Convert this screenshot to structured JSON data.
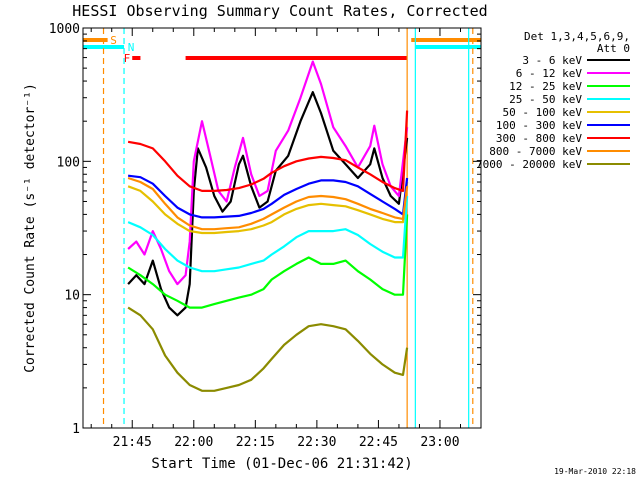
{
  "chart_data": {
    "type": "line",
    "title": "HESSI Observing Summary Count Rates, Corrected",
    "xlabel": "Start Time (01-Dec-06 21:31:42)",
    "ylabel": "Corrected Count Rate (s⁻¹ detector⁻¹)",
    "y_scale": "log",
    "ylim": [
      1,
      1000
    ],
    "xlim": [
      "21:33",
      "23:10"
    ],
    "x_ticks": [
      "21:45",
      "22:00",
      "22:15",
      "22:30",
      "22:45",
      "23:00"
    ],
    "y_ticks": [
      {
        "value": 1,
        "label": "1"
      },
      {
        "value": 10,
        "label": "10"
      },
      {
        "value": 100,
        "label": "100"
      },
      {
        "value": 1000,
        "label": "1000"
      }
    ],
    "legend_title": [
      "Det 1,3,4,5,6,9,",
      "Att 0"
    ],
    "legend_position": "right",
    "series": [
      {
        "name": "3 - 6 keV",
        "color": "#000000",
        "points": [
          [
            "21:44",
            12
          ],
          [
            "21:46",
            14
          ],
          [
            "21:48",
            12
          ],
          [
            "21:50",
            18
          ],
          [
            "21:52",
            11
          ],
          [
            "21:54",
            8
          ],
          [
            "21:56",
            7
          ],
          [
            "21:58",
            8
          ],
          [
            "21:59",
            12
          ],
          [
            "22:00",
            60
          ],
          [
            "22:01",
            125
          ],
          [
            "22:03",
            90
          ],
          [
            "22:05",
            55
          ],
          [
            "22:07",
            42
          ],
          [
            "22:09",
            50
          ],
          [
            "22:11",
            95
          ],
          [
            "22:12",
            110
          ],
          [
            "22:14",
            65
          ],
          [
            "22:16",
            45
          ],
          [
            "22:18",
            50
          ],
          [
            "22:20",
            85
          ],
          [
            "22:23",
            110
          ],
          [
            "22:26",
            200
          ],
          [
            "22:29",
            330
          ],
          [
            "22:31",
            230
          ],
          [
            "22:34",
            120
          ],
          [
            "22:37",
            95
          ],
          [
            "22:40",
            75
          ],
          [
            "22:43",
            95
          ],
          [
            "22:44",
            125
          ],
          [
            "22:46",
            75
          ],
          [
            "22:48",
            55
          ],
          [
            "22:50",
            48
          ],
          [
            "22:52",
            150
          ]
        ]
      },
      {
        "name": "6 - 12 keV",
        "color": "#ff00ff",
        "points": [
          [
            "21:44",
            22
          ],
          [
            "21:46",
            25
          ],
          [
            "21:48",
            20
          ],
          [
            "21:50",
            30
          ],
          [
            "21:52",
            22
          ],
          [
            "21:54",
            15
          ],
          [
            "21:56",
            12
          ],
          [
            "21:58",
            14
          ],
          [
            "21:59",
            25
          ],
          [
            "22:00",
            100
          ],
          [
            "22:02",
            200
          ],
          [
            "22:04",
            110
          ],
          [
            "22:06",
            60
          ],
          [
            "22:08",
            50
          ],
          [
            "22:10",
            90
          ],
          [
            "22:12",
            150
          ],
          [
            "22:14",
            80
          ],
          [
            "22:16",
            55
          ],
          [
            "22:18",
            60
          ],
          [
            "22:20",
            120
          ],
          [
            "22:23",
            170
          ],
          [
            "22:26",
            300
          ],
          [
            "22:29",
            560
          ],
          [
            "22:31",
            380
          ],
          [
            "22:34",
            180
          ],
          [
            "22:37",
            130
          ],
          [
            "22:40",
            90
          ],
          [
            "22:43",
            130
          ],
          [
            "22:44",
            185
          ],
          [
            "22:46",
            95
          ],
          [
            "22:48",
            65
          ],
          [
            "22:50",
            55
          ],
          [
            "22:52",
            180
          ]
        ]
      },
      {
        "name": "12 - 25 keV",
        "color": "#00ff00",
        "points": [
          [
            "21:44",
            16
          ],
          [
            "21:47",
            14
          ],
          [
            "21:50",
            12
          ],
          [
            "21:53",
            10
          ],
          [
            "21:56",
            9
          ],
          [
            "21:59",
            8
          ],
          [
            "22:02",
            8
          ],
          [
            "22:05",
            8.5
          ],
          [
            "22:08",
            9
          ],
          [
            "22:11",
            9.5
          ],
          [
            "22:14",
            10
          ],
          [
            "22:17",
            11
          ],
          [
            "22:19",
            13
          ],
          [
            "22:22",
            15
          ],
          [
            "22:25",
            17
          ],
          [
            "22:28",
            19
          ],
          [
            "22:31",
            17
          ],
          [
            "22:34",
            17
          ],
          [
            "22:37",
            18
          ],
          [
            "22:40",
            15
          ],
          [
            "22:43",
            13
          ],
          [
            "22:46",
            11
          ],
          [
            "22:49",
            10
          ],
          [
            "22:51",
            10
          ],
          [
            "22:52",
            40
          ]
        ]
      },
      {
        "name": "25 - 50 keV",
        "color": "#00ffff",
        "points": [
          [
            "21:44",
            35
          ],
          [
            "21:47",
            32
          ],
          [
            "21:50",
            28
          ],
          [
            "21:53",
            22
          ],
          [
            "21:56",
            18
          ],
          [
            "21:59",
            16
          ],
          [
            "22:02",
            15
          ],
          [
            "22:05",
            15
          ],
          [
            "22:08",
            15.5
          ],
          [
            "22:11",
            16
          ],
          [
            "22:14",
            17
          ],
          [
            "22:17",
            18
          ],
          [
            "22:19",
            20
          ],
          [
            "22:22",
            23
          ],
          [
            "22:25",
            27
          ],
          [
            "22:28",
            30
          ],
          [
            "22:31",
            30
          ],
          [
            "22:34",
            30
          ],
          [
            "22:37",
            31
          ],
          [
            "22:40",
            28
          ],
          [
            "22:43",
            24
          ],
          [
            "22:46",
            21
          ],
          [
            "22:49",
            19
          ],
          [
            "22:51",
            19
          ],
          [
            "22:52",
            55
          ]
        ]
      },
      {
        "name": "50 - 100 keV",
        "color": "#e6c000",
        "points": [
          [
            "21:44",
            65
          ],
          [
            "21:47",
            60
          ],
          [
            "21:50",
            50
          ],
          [
            "21:53",
            40
          ],
          [
            "21:56",
            34
          ],
          [
            "21:59",
            30
          ],
          [
            "22:02",
            29
          ],
          [
            "22:05",
            29
          ],
          [
            "22:08",
            29.5
          ],
          [
            "22:11",
            30
          ],
          [
            "22:14",
            31
          ],
          [
            "22:17",
            33
          ],
          [
            "22:19",
            35
          ],
          [
            "22:22",
            40
          ],
          [
            "22:25",
            44
          ],
          [
            "22:28",
            47
          ],
          [
            "22:31",
            48
          ],
          [
            "22:34",
            47
          ],
          [
            "22:37",
            46
          ],
          [
            "22:40",
            43
          ],
          [
            "22:43",
            40
          ],
          [
            "22:46",
            37
          ],
          [
            "22:49",
            35
          ],
          [
            "22:51",
            35
          ],
          [
            "22:52",
            70
          ]
        ]
      },
      {
        "name": "100 - 300 keV",
        "color": "#0000ff",
        "points": [
          [
            "21:44",
            78
          ],
          [
            "21:47",
            76
          ],
          [
            "21:50",
            68
          ],
          [
            "21:53",
            55
          ],
          [
            "21:56",
            45
          ],
          [
            "21:59",
            40
          ],
          [
            "22:02",
            38
          ],
          [
            "22:05",
            38
          ],
          [
            "22:08",
            38.5
          ],
          [
            "22:11",
            39
          ],
          [
            "22:14",
            41
          ],
          [
            "22:17",
            44
          ],
          [
            "22:19",
            48
          ],
          [
            "22:22",
            56
          ],
          [
            "22:25",
            62
          ],
          [
            "22:28",
            68
          ],
          [
            "22:31",
            72
          ],
          [
            "22:34",
            72
          ],
          [
            "22:37",
            70
          ],
          [
            "22:40",
            65
          ],
          [
            "22:43",
            57
          ],
          [
            "22:46",
            50
          ],
          [
            "22:49",
            44
          ],
          [
            "22:51",
            40
          ],
          [
            "22:52",
            75
          ]
        ]
      },
      {
        "name": "300 - 800 keV",
        "color": "#ff0000",
        "points": [
          [
            "21:44",
            140
          ],
          [
            "21:47",
            135
          ],
          [
            "21:50",
            125
          ],
          [
            "21:53",
            100
          ],
          [
            "21:56",
            78
          ],
          [
            "21:59",
            65
          ],
          [
            "22:02",
            60
          ],
          [
            "22:05",
            60
          ],
          [
            "22:08",
            61
          ],
          [
            "22:11",
            63
          ],
          [
            "22:14",
            67
          ],
          [
            "22:17",
            74
          ],
          [
            "22:19",
            82
          ],
          [
            "22:22",
            92
          ],
          [
            "22:25",
            100
          ],
          [
            "22:28",
            105
          ],
          [
            "22:31",
            108
          ],
          [
            "22:34",
            106
          ],
          [
            "22:37",
            102
          ],
          [
            "22:40",
            90
          ],
          [
            "22:43",
            80
          ],
          [
            "22:46",
            70
          ],
          [
            "22:49",
            63
          ],
          [
            "22:51",
            60
          ],
          [
            "22:52",
            240
          ]
        ]
      },
      {
        "name": "800 - 7000 keV",
        "color": "#ff8c00",
        "points": [
          [
            "21:44",
            75
          ],
          [
            "21:47",
            70
          ],
          [
            "21:50",
            62
          ],
          [
            "21:53",
            48
          ],
          [
            "21:56",
            38
          ],
          [
            "21:59",
            33
          ],
          [
            "22:02",
            31
          ],
          [
            "22:05",
            31
          ],
          [
            "22:08",
            31.5
          ],
          [
            "22:11",
            32
          ],
          [
            "22:14",
            34
          ],
          [
            "22:17",
            37
          ],
          [
            "22:19",
            40
          ],
          [
            "22:22",
            45
          ],
          [
            "22:25",
            50
          ],
          [
            "22:28",
            54
          ],
          [
            "22:31",
            55
          ],
          [
            "22:34",
            54
          ],
          [
            "22:37",
            52
          ],
          [
            "22:40",
            48
          ],
          [
            "22:43",
            44
          ],
          [
            "22:46",
            41
          ],
          [
            "22:49",
            38
          ],
          [
            "22:51",
            37
          ],
          [
            "22:52",
            65
          ]
        ]
      },
      {
        "name": "7000 - 20000 keV",
        "color": "#8b8b00",
        "points": [
          [
            "21:44",
            8
          ],
          [
            "21:47",
            7
          ],
          [
            "21:50",
            5.5
          ],
          [
            "21:53",
            3.5
          ],
          [
            "21:56",
            2.6
          ],
          [
            "21:59",
            2.1
          ],
          [
            "22:02",
            1.9
          ],
          [
            "22:05",
            1.9
          ],
          [
            "22:08",
            2
          ],
          [
            "22:11",
            2.1
          ],
          [
            "22:14",
            2.3
          ],
          [
            "22:17",
            2.8
          ],
          [
            "22:19",
            3.3
          ],
          [
            "22:22",
            4.2
          ],
          [
            "22:25",
            5
          ],
          [
            "22:28",
            5.8
          ],
          [
            "22:31",
            6
          ],
          [
            "22:34",
            5.8
          ],
          [
            "22:37",
            5.5
          ],
          [
            "22:40",
            4.5
          ],
          [
            "22:43",
            3.6
          ],
          [
            "22:46",
            3
          ],
          [
            "22:49",
            2.6
          ],
          [
            "22:51",
            2.5
          ],
          [
            "22:52",
            4
          ]
        ]
      }
    ],
    "state_bars": [
      {
        "label": "S",
        "color": "#ff8c00",
        "start": "21:33",
        "end": "21:39"
      },
      {
        "label": "N",
        "color": "#00ffff",
        "start": "21:33",
        "end": "21:43"
      },
      {
        "label": "F",
        "color": "#ff0000",
        "start": "21:45",
        "end": "21:47"
      },
      {
        "label": "",
        "color": "#ff0000",
        "start": "21:58",
        "end": "22:52"
      },
      {
        "label": "",
        "color": "#ff8c00",
        "start": "22:53",
        "end": "23:10"
      },
      {
        "label": "",
        "color": "#00ffff",
        "start": "22:54",
        "end": "23:10"
      }
    ],
    "vertical_markers": [
      {
        "time": "21:38",
        "color": "#ff8c00",
        "style": "dashed"
      },
      {
        "time": "21:43",
        "color": "#00ffff",
        "style": "dashed"
      },
      {
        "time": "22:52",
        "color": "#ff8c00",
        "style": "solid"
      },
      {
        "time": "22:54",
        "color": "#00ffff",
        "style": "solid"
      },
      {
        "time": "23:07",
        "color": "#00ffff",
        "style": "solid"
      },
      {
        "time": "23:08",
        "color": "#ff8c00",
        "style": "dashed"
      }
    ]
  },
  "footer": {
    "timestamp": "19-Mar-2010 22:18"
  }
}
